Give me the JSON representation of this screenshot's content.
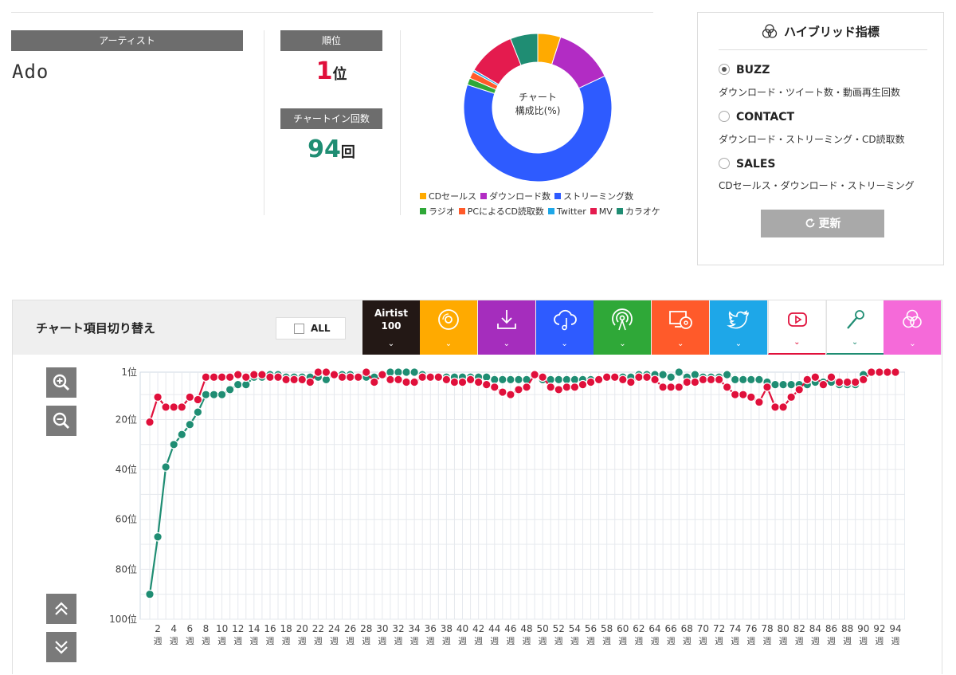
{
  "artist": {
    "header": "アーティスト",
    "name": "Ado"
  },
  "rank": {
    "header": "順位",
    "value": "1",
    "unit": "位",
    "color": "#e0103b"
  },
  "chart_in": {
    "header": "チャートイン回数",
    "value": "94",
    "unit": "回",
    "color": "#1f8d73"
  },
  "donut": {
    "center_line1": "チャート",
    "center_line2": "構成比(%)",
    "segments": [
      {
        "name": "CDセールス",
        "value": 5,
        "color": "#ffaa00"
      },
      {
        "name": "ダウンロード数",
        "value": 13,
        "color": "#b22cc4"
      },
      {
        "name": "ストリーミング数",
        "value": 62,
        "color": "#2e5bff"
      },
      {
        "name": "ラジオ",
        "value": 1.5,
        "color": "#2fa838"
      },
      {
        "name": "PCによるCD読取数",
        "value": 1.5,
        "color": "#ff5a2a"
      },
      {
        "name": "Twitter",
        "value": 0.5,
        "color": "#1ea7e8"
      },
      {
        "name": "MV",
        "value": 10.5,
        "color": "#e41b4e"
      },
      {
        "name": "カラオケ",
        "value": 6,
        "color": "#1f8d73"
      }
    ]
  },
  "hybrid": {
    "title": "ハイブリッド指標",
    "options": [
      {
        "label": "BUZZ",
        "desc": "ダウンロード・ツイート数・動画再生回数",
        "selected": true
      },
      {
        "label": "CONTACT",
        "desc": "ダウンロード・ストリーミング・CD読取数",
        "selected": false
      },
      {
        "label": "SALES",
        "desc": "CDセールス・ダウンロード・ストリーミング",
        "selected": false
      }
    ],
    "update_label": "更新"
  },
  "panel": {
    "switch_label": "チャート項目切り替え",
    "all_label": "ALL",
    "airtist_label1": "Airtist",
    "airtist_label2": "100",
    "tabs": [
      {
        "name": "cd-sales",
        "icon": "cd-icon",
        "bg": "#ffaa00"
      },
      {
        "name": "download",
        "icon": "download-icon",
        "bg": "#a52dbd"
      },
      {
        "name": "streaming",
        "icon": "cloud-music-icon",
        "bg": "#2e5bff"
      },
      {
        "name": "radio",
        "icon": "radio-icon",
        "bg": "#2fa838"
      },
      {
        "name": "pc-cd-read",
        "icon": "pc-cd-icon",
        "bg": "#ff5a2a"
      },
      {
        "name": "twitter",
        "icon": "twitter-icon",
        "bg": "#1ea7e8"
      },
      {
        "name": "mv",
        "icon": "youtube-icon",
        "bg": "#ffffff"
      },
      {
        "name": "karaoke",
        "icon": "microphone-icon",
        "bg": "#ffffff"
      },
      {
        "name": "hybrid",
        "icon": "hybrid-icon",
        "bg": "#f56ad9"
      }
    ]
  },
  "chart_data": {
    "type": "line",
    "ylim": [
      100,
      1
    ],
    "y_ticks": [
      "1位",
      "20位",
      "40位",
      "60位",
      "80位",
      "100位"
    ],
    "x_ticks": [
      "2\n週",
      "4\n週",
      "6\n週",
      "8\n週",
      "10\n週",
      "12\n週",
      "14\n週",
      "16\n週",
      "18\n週",
      "20\n週",
      "22\n週",
      "24\n週",
      "26\n週",
      "28\n週",
      "30\n週",
      "32\n週",
      "34\n週",
      "36\n週",
      "38\n週",
      "40\n週",
      "42\n週",
      "44\n週",
      "46\n週",
      "48\n週",
      "50\n週",
      "52\n週",
      "54\n週",
      "56\n週",
      "58\n週",
      "60\n週",
      "62\n週",
      "64\n週",
      "66\n週",
      "68\n週",
      "70\n週",
      "72\n週",
      "74\n週",
      "76\n週",
      "78\n週",
      "80\n週",
      "82\n週",
      "84\n週",
      "86\n週",
      "88\n週",
      "90\n週",
      "92\n週",
      "94\n週"
    ],
    "x": [
      1,
      2,
      3,
      4,
      5,
      6,
      7,
      8,
      9,
      10,
      11,
      12,
      13,
      14,
      15,
      16,
      17,
      18,
      19,
      20,
      21,
      22,
      23,
      24,
      25,
      26,
      27,
      28,
      29,
      30,
      31,
      32,
      33,
      34,
      35,
      36,
      37,
      38,
      39,
      40,
      41,
      42,
      43,
      44,
      45,
      46,
      47,
      48,
      49,
      50,
      51,
      52,
      53,
      54,
      55,
      56,
      57,
      58,
      59,
      60,
      61,
      62,
      63,
      64,
      65,
      66,
      67,
      68,
      69,
      70,
      71,
      72,
      73,
      74,
      75,
      76,
      77,
      78,
      79,
      80,
      81,
      82,
      83,
      84,
      85,
      86,
      87,
      88,
      89,
      90,
      91,
      92,
      93,
      94
    ],
    "series": [
      {
        "color": "#1f8d73",
        "values": [
          90,
          67,
          39,
          30,
          26,
          22,
          17,
          10,
          10,
          10,
          8,
          6,
          6,
          3,
          3,
          2,
          2,
          3,
          3,
          3,
          3,
          3,
          4,
          2,
          2,
          2,
          3,
          3,
          3,
          2,
          1,
          1,
          1,
          1,
          2,
          3,
          3,
          3,
          3,
          3,
          3,
          3,
          3,
          4,
          4,
          4,
          4,
          4,
          2,
          4,
          4,
          4,
          4,
          4,
          4,
          4,
          4,
          3,
          3,
          3,
          3,
          2,
          2,
          2,
          2,
          3,
          1,
          3,
          2,
          3,
          3,
          3,
          2,
          4,
          4,
          4,
          4,
          5,
          6,
          6,
          6,
          6,
          6,
          5,
          5,
          5,
          6,
          6,
          6,
          2,
          1,
          1,
          1,
          1
        ]
      },
      {
        "color": "#e0103b",
        "values": [
          21,
          11,
          15,
          15,
          15,
          11,
          12,
          3,
          3,
          3,
          3,
          2,
          3,
          2,
          2,
          3,
          3,
          4,
          4,
          4,
          5,
          1,
          1,
          2,
          3,
          3,
          3,
          1,
          5,
          2,
          4,
          4,
          5,
          5,
          3,
          3,
          3,
          4,
          5,
          5,
          4,
          5,
          6,
          7,
          9,
          10,
          8,
          7,
          2,
          3,
          7,
          8,
          7,
          7,
          6,
          5,
          4,
          3,
          3,
          4,
          5,
          3,
          3,
          4,
          7,
          7,
          7,
          5,
          5,
          4,
          4,
          4,
          7,
          10,
          10,
          11,
          13,
          7,
          15,
          15,
          11,
          8,
          4,
          3,
          6,
          3,
          5,
          5,
          5,
          4,
          1,
          1,
          1,
          1
        ]
      }
    ]
  }
}
